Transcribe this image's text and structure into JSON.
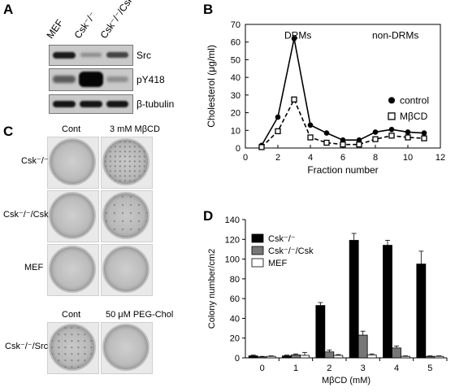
{
  "panels": {
    "a": "A",
    "b": "B",
    "c": "C",
    "d": "D"
  },
  "panel_a": {
    "lanes": [
      "MEF",
      "Csk⁻/⁻",
      "Csk⁻/⁻/Csk"
    ],
    "blots": [
      "Src",
      "pY418",
      "β-tubulin"
    ]
  },
  "panel_c": {
    "col_headers_top": [
      "Cont",
      "3 mM MβCD"
    ],
    "row_labels_top": [
      "Csk⁻/⁻",
      "Csk⁻/⁻/Csk",
      "MEF"
    ],
    "col_headers_bottom": [
      "Cont",
      "50 μM PEG-Chol"
    ],
    "row_label_bottom": "Csk⁻/⁻/Src"
  },
  "chart_data": [
    {
      "type": "line",
      "panel": "B",
      "ylabel": "Cholesterol (μg/ml)",
      "xlabel": "Fraction number",
      "xlim": [
        0,
        12
      ],
      "ylim": [
        0,
        70
      ],
      "xticks": [
        0,
        2,
        4,
        6,
        8,
        10,
        12
      ],
      "yticks": [
        0,
        10,
        20,
        30,
        40,
        50,
        60,
        70
      ],
      "annotations": [
        "DRMs",
        "non-DRMs"
      ],
      "legend_position": "right",
      "series": [
        {
          "name": "control",
          "marker": "filled-circle",
          "style": "solid",
          "x": [
            1,
            2,
            3,
            4,
            5,
            6,
            7,
            8,
            9,
            10,
            11
          ],
          "y": [
            1.5,
            17.5,
            62,
            13,
            8.5,
            4.5,
            4.5,
            9,
            10.5,
            9,
            8.5
          ]
        },
        {
          "name": "MβCD",
          "marker": "open-square",
          "style": "dashed",
          "x": [
            1,
            2,
            3,
            4,
            5,
            6,
            7,
            8,
            9,
            10,
            11
          ],
          "y": [
            0.5,
            9.5,
            27.5,
            6,
            3,
            2,
            2,
            5,
            7,
            6,
            5.5
          ]
        }
      ]
    },
    {
      "type": "bar",
      "panel": "D",
      "ylabel": "Colony number/cm2",
      "xlabel": "MβCD (mM)",
      "categories": [
        "0",
        "1",
        "2",
        "3",
        "4",
        "5"
      ],
      "ylim": [
        0,
        140
      ],
      "yticks": [
        0,
        20,
        40,
        60,
        80,
        100,
        120,
        140
      ],
      "legend_position": "top-left",
      "series": [
        {
          "name": "Csk⁻/⁻",
          "color": "#000000",
          "values": [
            2,
            2,
            53,
            119,
            114,
            95
          ],
          "errors": [
            0.8,
            0.8,
            3,
            7,
            5,
            13
          ]
        },
        {
          "name": "Csk⁻/⁻/Csk",
          "color": "#777777",
          "values": [
            1,
            3,
            6,
            23,
            10,
            1.5
          ],
          "errors": [
            0.5,
            1,
            2,
            4,
            2,
            0.5
          ]
        },
        {
          "name": "MEF",
          "color": "#ffffff",
          "values": [
            1.5,
            2.5,
            2.5,
            3,
            1.5,
            1.5
          ],
          "errors": [
            0.5,
            3,
            0.8,
            1,
            0.5,
            0.5
          ]
        }
      ]
    }
  ]
}
